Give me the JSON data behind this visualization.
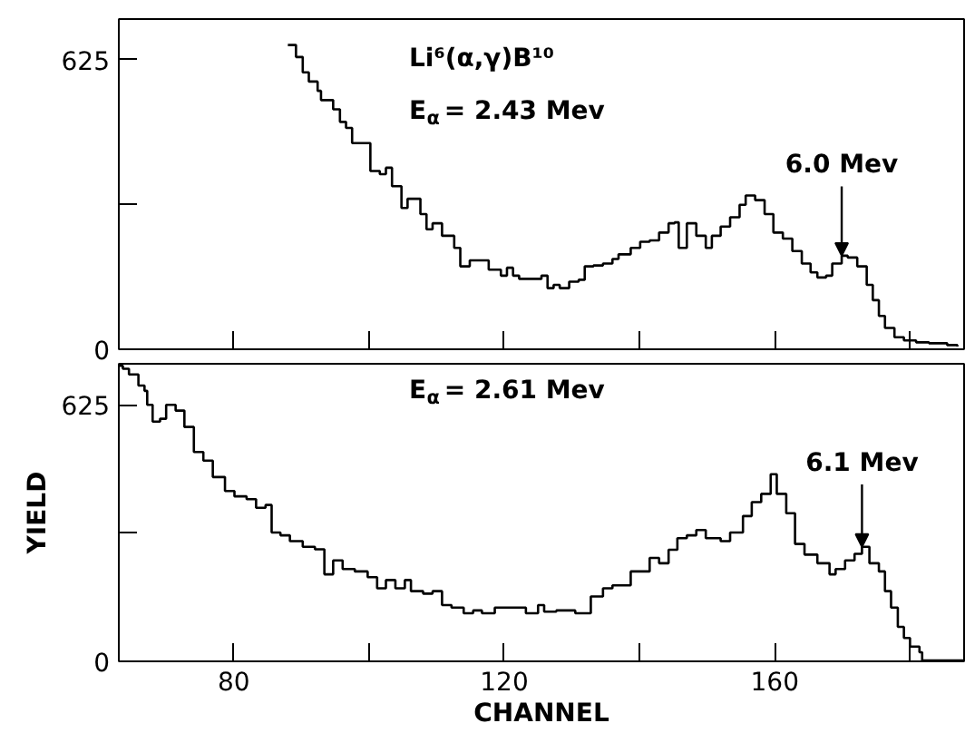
{
  "chart_data": [
    {
      "type": "step",
      "xlim": [
        63,
        188
      ],
      "ylim": [
        0,
        713
      ],
      "xticks": [
        80,
        {
          "value": 100,
          "label": null
        },
        120,
        {
          "value": 140,
          "label": null
        },
        160,
        {
          "value": 180,
          "label": null
        }
      ],
      "yticks": [
        0,
        {
          "value": 312.5,
          "label": null
        },
        625
      ],
      "tick_labels": "y",
      "grid": false,
      "x": [
        88.0,
        89.2,
        90.2,
        91.1,
        92.4,
        92.9,
        94.7,
        95.7,
        96.6,
        97.5,
        100.2,
        101.6,
        102.5,
        103.4,
        104.8,
        105.7,
        107.6,
        108.5,
        109.4,
        110.8,
        112.6,
        113.5,
        114.9,
        116.3,
        117.7,
        119.5,
        120.4,
        121.3,
        122.2,
        124.1,
        125.5,
        126.4,
        127.3,
        128.2,
        129.6,
        131.0,
        131.9,
        133.2,
        134.6,
        136.0,
        136.9,
        138.7,
        140.1,
        141.5,
        142.9,
        144.3,
        145.2,
        145.8,
        147.0,
        148.4,
        149.8,
        150.7,
        152.0,
        153.4,
        154.8,
        155.7,
        157.1,
        158.5,
        159.8,
        161.2,
        162.6,
        164.0,
        165.3,
        166.3,
        167.6,
        168.5,
        169.9,
        170.8,
        172.2,
        173.6,
        174.5,
        175.4,
        176.3,
        177.7,
        179.1,
        180.9,
        182.8,
        185.5,
        187.0
      ],
      "series": [
        {
          "color": "#000000",
          "values": [
            657,
            631,
            598,
            578,
            558,
            538,
            518,
            491,
            478,
            445,
            385,
            378,
            392,
            352,
            305,
            325,
            292,
            259,
            272,
            245,
            219,
            179,
            192,
            192,
            172,
            159,
            176,
            159,
            152,
            152,
            159,
            132,
            139,
            132,
            146,
            150,
            179,
            181,
            185,
            195,
            205,
            219,
            232,
            235,
            252,
            272,
            274,
            219,
            272,
            245,
            219,
            245,
            265,
            285,
            312,
            332,
            322,
            292,
            252,
            239,
            212,
            185,
            166,
            155,
            159,
            185,
            202,
            198,
            179,
            139,
            106,
            72,
            46,
            26,
            19,
            15,
            13,
            9,
            6
          ]
        }
      ],
      "annotations": [
        "Li⁶(α,γ)B¹⁰",
        "E$_{α}$ = 2.43 Mev",
        {
          "text": "6.0 Mev",
          "x": 169.9,
          "y": 202
        }
      ]
    },
    {
      "type": "step",
      "xlim": [
        63,
        188
      ],
      "ylim": [
        0,
        725
      ],
      "xticks": [
        80,
        {
          "value": 100,
          "label": null
        },
        120,
        {
          "value": 140,
          "label": null
        },
        160,
        {
          "value": 180,
          "label": null
        }
      ],
      "yticks": [
        0,
        {
          "value": 312.5,
          "label": null
        },
        625
      ],
      "grid": false,
      "xlabel": "CHANNEL",
      "ylabel": "YIELD",
      "x": [
        63.1,
        63.6,
        64.5,
        65.9,
        66.8,
        67.2,
        68.0,
        69.1,
        70.0,
        71.4,
        72.7,
        74.1,
        75.5,
        76.9,
        78.7,
        80.1,
        81.9,
        83.3,
        84.7,
        85.6,
        86.9,
        88.3,
        90.2,
        92.0,
        93.4,
        94.7,
        96.1,
        97.9,
        99.8,
        101.2,
        102.5,
        103.9,
        105.3,
        106.2,
        108.0,
        109.4,
        110.8,
        112.2,
        114.0,
        115.4,
        116.7,
        118.6,
        121.3,
        123.2,
        125.0,
        125.9,
        127.7,
        130.5,
        132.8,
        134.6,
        136.0,
        138.7,
        141.5,
        142.9,
        144.3,
        145.6,
        147.0,
        148.4,
        149.8,
        152.0,
        153.4,
        155.3,
        156.6,
        158.0,
        159.4,
        160.3,
        161.7,
        163.0,
        164.4,
        166.3,
        168.1,
        169.0,
        170.4,
        171.8,
        172.9,
        174.0,
        175.4,
        176.3,
        177.2,
        178.2,
        179.1,
        180.0,
        181.4,
        181.8,
        188.0
      ],
      "series": [
        {
          "color": "#000000",
          "values": [
            720,
            713,
            699,
            672,
            659,
            625,
            584,
            591,
            625,
            611,
            571,
            510,
            489,
            449,
            415,
            402,
            395,
            374,
            381,
            314,
            307,
            293,
            279,
            273,
            212,
            246,
            225,
            219,
            205,
            178,
            198,
            178,
            198,
            171,
            165,
            171,
            137,
            131,
            117,
            124,
            117,
            131,
            131,
            117,
            137,
            121,
            124,
            117,
            158,
            178,
            185,
            219,
            252,
            239,
            272,
            300,
            307,
            320,
            300,
            293,
            314,
            354,
            388,
            408,
            456,
            408,
            361,
            286,
            260,
            239,
            212,
            225,
            246,
            262,
            279,
            239,
            219,
            171,
            131,
            84,
            57,
            36,
            22,
            2,
            0
          ]
        }
      ],
      "annotations": [
        "E$_{α}$ = 2.61 Mev",
        {
          "text": "6.1 Mev",
          "x": 172.9,
          "y": 279
        }
      ]
    }
  ]
}
